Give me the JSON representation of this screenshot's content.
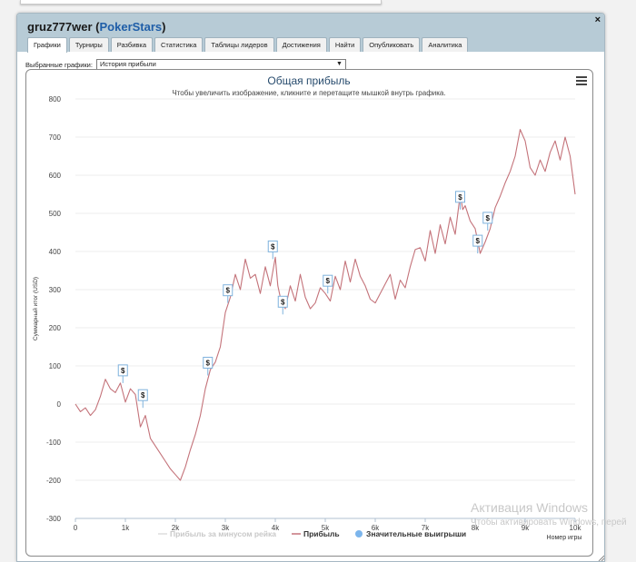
{
  "window": {
    "player_name": "gruz777wer",
    "site": "PokerStars",
    "title_prefix": " (",
    "title_suffix": ")",
    "close_symbol": "×"
  },
  "tabs": [
    "Графики",
    "Турниры",
    "Разбивка",
    "Статистика",
    "Таблицы лидеров",
    "Достижения",
    "Найти",
    "Опубликовать",
    "Аналитика"
  ],
  "selector": {
    "label": "Выбранные графики:",
    "value": "История прибыли",
    "arrow": "▼"
  },
  "chart_data": {
    "type": "line",
    "title": "Общая прибыль",
    "subtitle": "Чтобы увеличить изображение, кликните и перетащите мышкой внутрь графика.",
    "ylabel": "Суммарный итог (USD)",
    "xlabel": "Номер игры",
    "ylim": [
      -300,
      800
    ],
    "yticks": [
      -300,
      -200,
      -100,
      0,
      100,
      200,
      300,
      400,
      500,
      600,
      700,
      800
    ],
    "xlim": [
      0,
      10000
    ],
    "xticks": [
      0,
      1000,
      2000,
      3000,
      4000,
      5000,
      6000,
      7000,
      8000,
      9000,
      10000
    ],
    "xtick_labels": [
      "0",
      "1k",
      "2k",
      "3k",
      "4k",
      "5k",
      "6k",
      "7k",
      "8k",
      "9k",
      "10k"
    ],
    "legend": [
      "Прибыль за минусом рейка",
      "Прибыль",
      "Значительные выигрыши"
    ],
    "series": [
      {
        "name": "Прибыль",
        "color": "#c4737a",
        "x": [
          0,
          100,
          200,
          300,
          400,
          500,
          600,
          700,
          800,
          900,
          1000,
          1100,
          1200,
          1300,
          1400,
          1500,
          1600,
          1700,
          1800,
          1900,
          2000,
          2100,
          2200,
          2300,
          2400,
          2500,
          2600,
          2700,
          2800,
          2900,
          3000,
          3100,
          3200,
          3300,
          3400,
          3500,
          3600,
          3700,
          3800,
          3900,
          4000,
          4050,
          4100,
          4200,
          4300,
          4400,
          4500,
          4600,
          4700,
          4800,
          4900,
          5000,
          5100,
          5200,
          5300,
          5400,
          5500,
          5600,
          5700,
          5800,
          5900,
          6000,
          6100,
          6200,
          6300,
          6400,
          6500,
          6600,
          6700,
          6800,
          6900,
          7000,
          7100,
          7200,
          7300,
          7400,
          7500,
          7600,
          7700,
          7750,
          7800,
          7900,
          8000,
          8100,
          8200,
          8300,
          8400,
          8500,
          8600,
          8700,
          8800,
          8900,
          9000,
          9100,
          9200,
          9300,
          9400,
          9500,
          9600,
          9700,
          9800,
          9900,
          10000
        ],
        "y": [
          0,
          -20,
          -10,
          -30,
          -15,
          20,
          65,
          40,
          30,
          55,
          5,
          40,
          25,
          -60,
          -30,
          -90,
          -110,
          -130,
          -150,
          -170,
          -185,
          -200,
          -165,
          -120,
          -80,
          -30,
          40,
          90,
          110,
          150,
          240,
          280,
          340,
          300,
          380,
          330,
          340,
          290,
          360,
          310,
          385,
          310,
          280,
          250,
          310,
          270,
          340,
          280,
          250,
          265,
          305,
          290,
          270,
          335,
          300,
          375,
          320,
          380,
          335,
          310,
          275,
          265,
          290,
          315,
          340,
          275,
          325,
          305,
          360,
          405,
          410,
          375,
          455,
          395,
          470,
          420,
          490,
          445,
          550,
          510,
          520,
          480,
          460,
          395,
          425,
          460,
          515,
          545,
          580,
          610,
          650,
          720,
          690,
          620,
          600,
          640,
          610,
          660,
          690,
          640,
          700,
          650,
          550
        ]
      }
    ],
    "big_wins": [
      {
        "x": 950,
        "y": 55,
        "label": "$"
      },
      {
        "x": 1350,
        "y": -10,
        "label": "$"
      },
      {
        "x": 2650,
        "y": 75,
        "label": "$"
      },
      {
        "x": 3050,
        "y": 265,
        "label": "$"
      },
      {
        "x": 3950,
        "y": 380,
        "label": "$"
      },
      {
        "x": 4150,
        "y": 235,
        "label": "$"
      },
      {
        "x": 5050,
        "y": 290,
        "label": "$"
      },
      {
        "x": 7700,
        "y": 510,
        "label": "$"
      },
      {
        "x": 8050,
        "y": 395,
        "label": "$"
      },
      {
        "x": 8250,
        "y": 455,
        "label": "$"
      }
    ]
  },
  "watermark": {
    "line1": "Активация Windows",
    "line2": "Чтобы активировать Windows, перей"
  }
}
